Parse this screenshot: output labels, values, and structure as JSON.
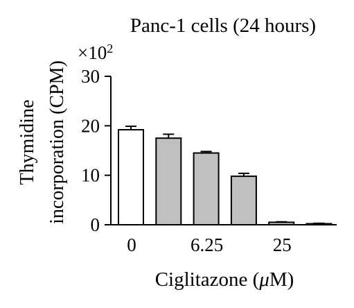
{
  "chart_data": {
    "type": "bar",
    "title": "Panc-1 cells (24 hours)",
    "xlabel": "Ciglitazone (μM)",
    "xlabel_prefix": "Ciglitazone (",
    "xlabel_mu": "μ",
    "xlabel_suffix": "M)",
    "ylabel_line1": "Thymidine",
    "ylabel_line2": "incorporation (CPM)",
    "multiplier_label": "×10",
    "multiplier_exponent": "2",
    "ylim": [
      0,
      30
    ],
    "yticks": [
      0,
      10,
      20,
      30
    ],
    "ytick_labels": [
      "0",
      "10",
      "20",
      "30"
    ],
    "grid": false,
    "legend": "none",
    "xtick_labels": [
      "0",
      "6.25",
      "25"
    ],
    "xtick_bar_index": [
      0,
      2,
      4
    ],
    "bars": [
      {
        "value": 19.2,
        "error": 0.7,
        "color": "#ffffff"
      },
      {
        "value": 17.5,
        "error": 0.8,
        "color": "#c0c0c0"
      },
      {
        "value": 14.5,
        "error": 0.3,
        "color": "#c0c0c0"
      },
      {
        "value": 9.8,
        "error": 0.6,
        "color": "#c0c0c0"
      },
      {
        "value": 0.5,
        "error": 0.1,
        "color": "#c0c0c0"
      },
      {
        "value": 0.2,
        "error": 0.1,
        "color": "#c0c0c0"
      }
    ]
  }
}
